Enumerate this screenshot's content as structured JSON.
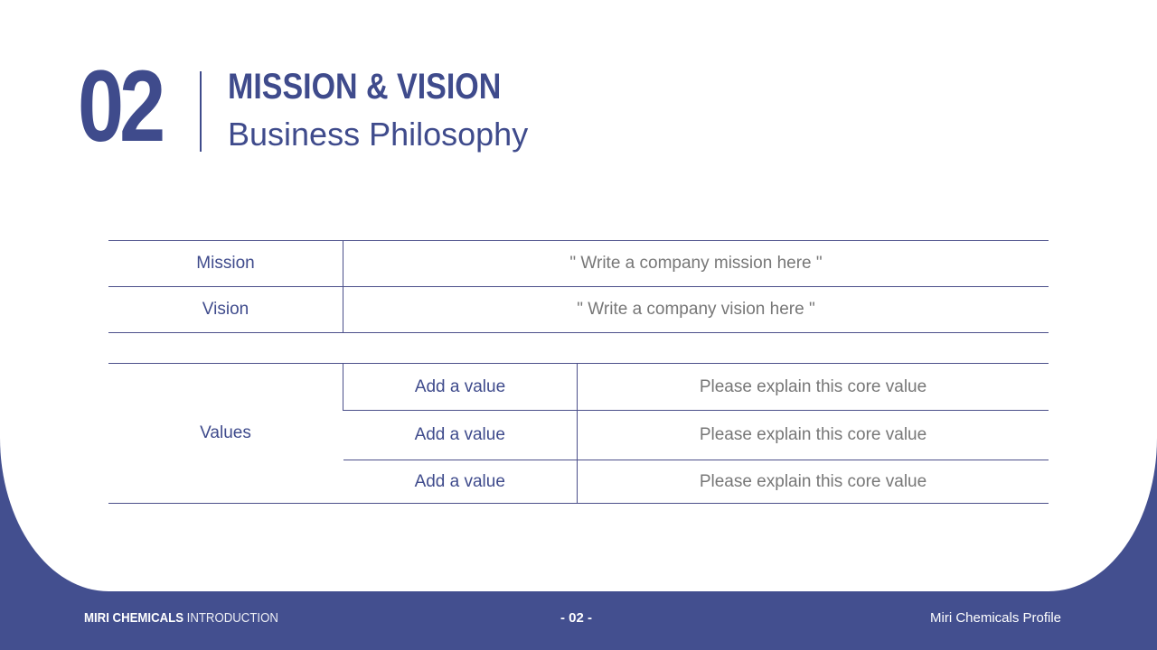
{
  "header": {
    "number": "02",
    "title": "MISSION & VISION",
    "subtitle": "Business Philosophy"
  },
  "mission": {
    "label": "Mission",
    "text": "\" Write a company mission here \""
  },
  "vision": {
    "label": "Vision",
    "text": "\" Write a company vision here \""
  },
  "values": {
    "label": "Values",
    "items": [
      {
        "name": "Add a value",
        "desc": "Please explain this core value"
      },
      {
        "name": "Add a value",
        "desc": "Please explain this core value"
      },
      {
        "name": "Add a value",
        "desc": "Please explain this core value"
      }
    ]
  },
  "footer": {
    "brand_bold": "MIRI CHEMICALS",
    "brand_light": "INTRODUCTION",
    "page": "- 02 -",
    "right": "Miri Chemicals Profile"
  },
  "colors": {
    "accent": "#3f4b8c",
    "background": "#434f8f"
  }
}
